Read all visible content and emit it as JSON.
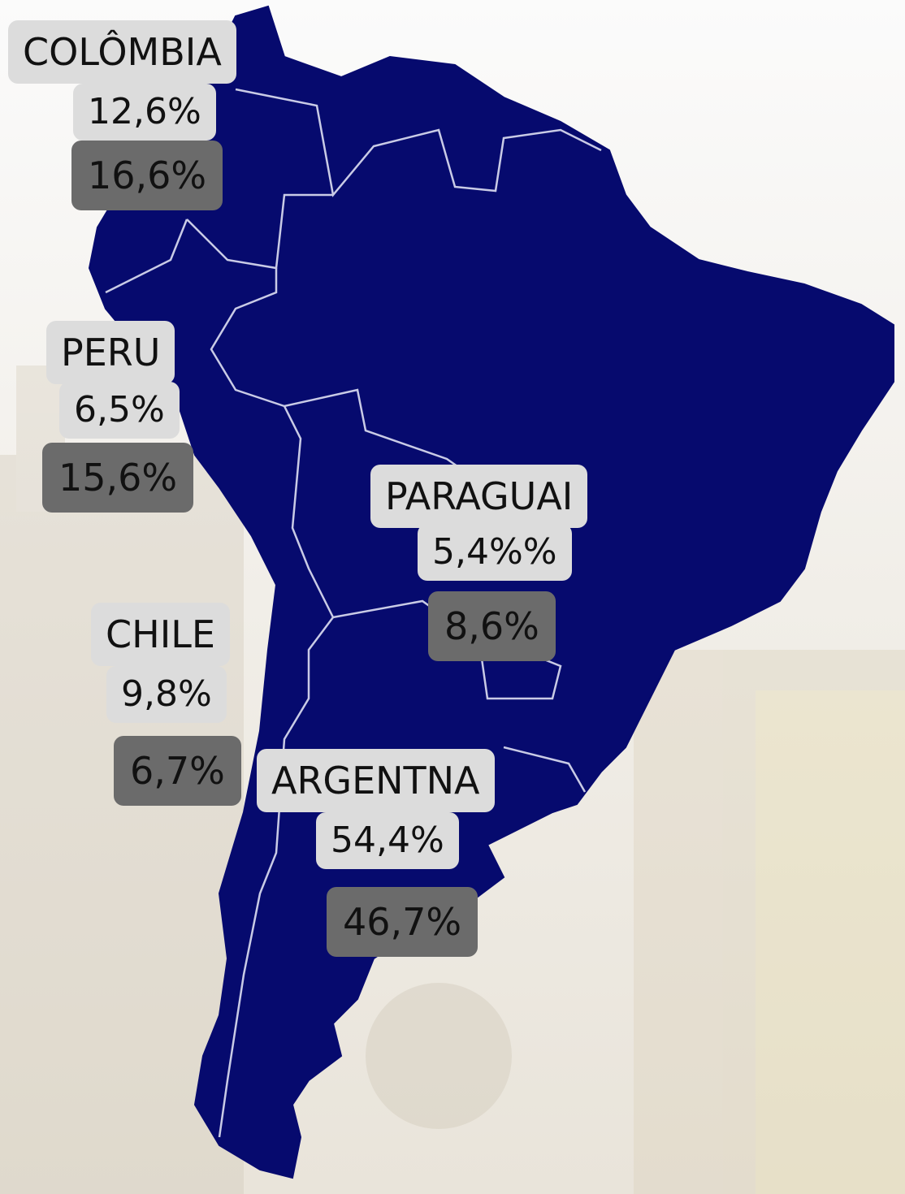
{
  "labels": [
    {
      "name": "COLÔMBIA",
      "value": "12,6%",
      "value2": "16,6%"
    },
    {
      "name": "PERU",
      "value": "6,5%",
      "value2": "15,6%"
    },
    {
      "name": "PARAGUAI",
      "value": "5,4%%",
      "value2": "8,6%"
    },
    {
      "name": "CHILE",
      "value": "9,8%",
      "value2": "6,7%"
    },
    {
      "name": "ARGENTNA",
      "value": "54,4%",
      "value2": "46,7%"
    }
  ]
}
